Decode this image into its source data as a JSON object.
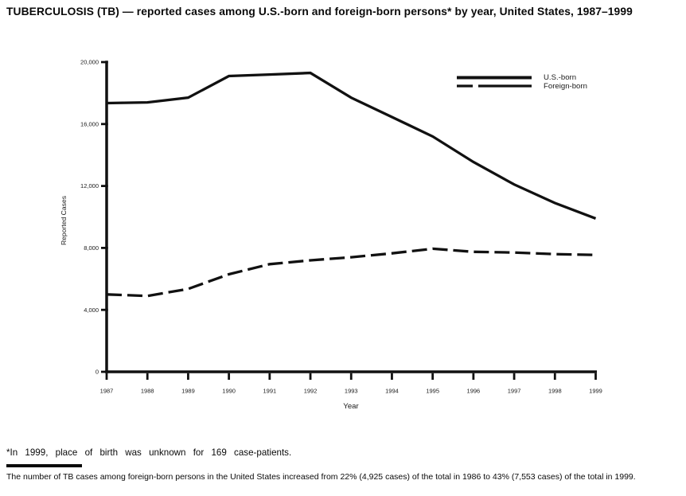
{
  "title": "TUBERCULOSIS (TB) — reported cases among U.S.-born and foreign-born persons* by year, United States, 1987–1999",
  "chart_data": {
    "type": "line",
    "x": [
      1987,
      1988,
      1989,
      1990,
      1991,
      1992,
      1993,
      1994,
      1995,
      1996,
      1997,
      1998,
      1999
    ],
    "series": [
      {
        "name": "U.S.-born",
        "line_style": "solid",
        "values": [
          17350,
          17400,
          17700,
          19100,
          19200,
          19300,
          17700,
          16450,
          15200,
          13550,
          12100,
          10900,
          9900
        ]
      },
      {
        "name": "Foreign-born",
        "line_style": "dashed",
        "values": [
          5000,
          4900,
          5350,
          6300,
          6950,
          7200,
          7400,
          7650,
          7950,
          7750,
          7700,
          7600,
          7550
        ]
      }
    ],
    "xlabel": "Year",
    "ylabel": "Reported Cases",
    "ylim": [
      0,
      20000
    ],
    "yticks": [
      0,
      4000,
      8000,
      12000,
      16000,
      20000
    ],
    "ytick_labels": [
      "0",
      "4,000",
      "8,000",
      "12,000",
      "16,000",
      "20,000"
    ],
    "grid": false,
    "legend_position": "top-right",
    "line_color": "#111111"
  },
  "footnotes": {
    "asterisk": "*In 1999, place of birth was unknown for 169 case-patients.",
    "source": "The number of TB cases among foreign-born persons in the United States increased from 22% (4,925 cases) of the total in 1986 to 43% (7,553 cases) of the total in 1999."
  },
  "colors": {
    "ink": "#111111",
    "background": "#ffffff"
  }
}
